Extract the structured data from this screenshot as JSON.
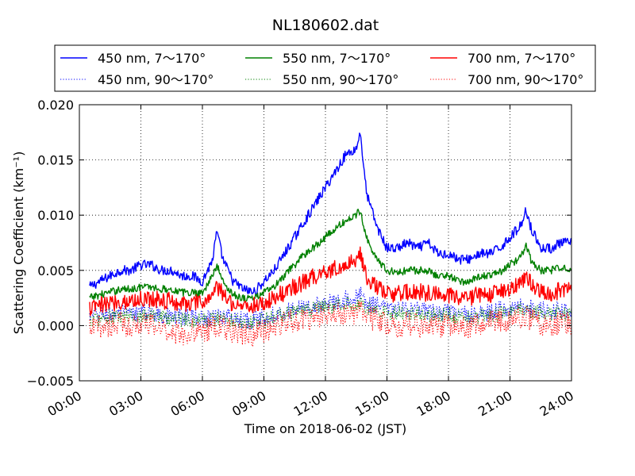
{
  "chart_data": {
    "type": "line",
    "title": "NL180602.dat",
    "xlabel": "Time on 2018-06-02 (JST)",
    "ylabel": "Scattering Coefficient (km⁻¹)",
    "xlim": [
      "00:00",
      "24:00"
    ],
    "ylim": [
      -0.005,
      0.02
    ],
    "grid": true,
    "legend_position": "top",
    "x_ticks": [
      "00:00",
      "03:00",
      "06:00",
      "09:00",
      "12:00",
      "15:00",
      "18:00",
      "21:00",
      "24:00"
    ],
    "y_ticks": [
      "−0.005",
      "0.000",
      "0.005",
      "0.010",
      "0.015",
      "0.020"
    ],
    "x_hours": [
      0.5,
      1,
      1.5,
      2,
      2.5,
      3,
      3.5,
      4,
      4.5,
      5,
      5.5,
      6,
      6.5,
      6.7,
      7,
      7.5,
      8,
      8.5,
      9,
      9.5,
      10,
      10.5,
      11,
      11.5,
      12,
      12.5,
      13,
      13.5,
      13.7,
      14,
      14.5,
      15,
      15.5,
      16,
      16.5,
      17,
      17.5,
      18,
      18.5,
      19,
      19.5,
      20,
      20.5,
      21,
      21.5,
      21.8,
      22,
      22.5,
      23,
      23.5,
      24
    ],
    "series": [
      {
        "name": "450 nm, 7～170°",
        "color": "#0000ff",
        "style": "solid",
        "values": [
          0.0035,
          0.004,
          0.0045,
          0.005,
          0.005,
          0.0055,
          0.0055,
          0.005,
          0.005,
          0.0045,
          0.0045,
          0.004,
          0.006,
          0.0085,
          0.006,
          0.004,
          0.0033,
          0.003,
          0.004,
          0.005,
          0.0065,
          0.008,
          0.0095,
          0.011,
          0.0125,
          0.014,
          0.0155,
          0.016,
          0.0175,
          0.012,
          0.009,
          0.007,
          0.007,
          0.0075,
          0.007,
          0.0075,
          0.0065,
          0.0065,
          0.006,
          0.006,
          0.0065,
          0.0065,
          0.007,
          0.008,
          0.009,
          0.0105,
          0.009,
          0.007,
          0.007,
          0.0075,
          0.0075
        ]
      },
      {
        "name": "450 nm, 90～170°",
        "color": "#0000ff",
        "style": "dotted",
        "values": [
          0.0008,
          0.001,
          0.001,
          0.0012,
          0.001,
          0.0012,
          0.0012,
          0.001,
          0.0008,
          0.0008,
          0.0008,
          0.0006,
          0.0008,
          0.001,
          0.0008,
          0.0008,
          0.0005,
          0.0005,
          0.0008,
          0.001,
          0.0012,
          0.0015,
          0.0016,
          0.0018,
          0.002,
          0.0022,
          0.0024,
          0.0025,
          0.0028,
          0.002,
          0.0018,
          0.0015,
          0.0014,
          0.0015,
          0.0014,
          0.0012,
          0.0012,
          0.0012,
          0.001,
          0.001,
          0.001,
          0.0012,
          0.0014,
          0.0016,
          0.0018,
          0.0018,
          0.0016,
          0.0014,
          0.0014,
          0.0014,
          0.0014
        ]
      },
      {
        "name": "550 nm, 7～170°",
        "color": "#008000",
        "style": "solid",
        "values": [
          0.0025,
          0.0028,
          0.003,
          0.0033,
          0.0033,
          0.0035,
          0.0035,
          0.0033,
          0.0033,
          0.003,
          0.003,
          0.003,
          0.0045,
          0.0055,
          0.004,
          0.0028,
          0.0025,
          0.0025,
          0.003,
          0.0035,
          0.0045,
          0.0055,
          0.0065,
          0.0072,
          0.008,
          0.0088,
          0.0095,
          0.01,
          0.0105,
          0.008,
          0.006,
          0.005,
          0.0048,
          0.005,
          0.005,
          0.005,
          0.0045,
          0.0045,
          0.004,
          0.004,
          0.0045,
          0.0045,
          0.0048,
          0.0055,
          0.0062,
          0.0072,
          0.006,
          0.005,
          0.005,
          0.0052,
          0.0052
        ]
      },
      {
        "name": "550 nm, 90～170°",
        "color": "#008000",
        "style": "dotted",
        "values": [
          0.0005,
          0.0006,
          0.0008,
          0.0008,
          0.0008,
          0.001,
          0.001,
          0.0008,
          0.0006,
          0.0006,
          0.0005,
          0.0005,
          0.0006,
          0.0008,
          0.0006,
          0.0005,
          0.0003,
          0.0003,
          0.0005,
          0.0008,
          0.001,
          0.0012,
          0.0013,
          0.0015,
          0.0016,
          0.0018,
          0.002,
          0.002,
          0.0022,
          0.0016,
          0.0014,
          0.0012,
          0.0011,
          0.0012,
          0.0011,
          0.001,
          0.001,
          0.001,
          0.0008,
          0.0008,
          0.0008,
          0.001,
          0.0011,
          0.0012,
          0.0014,
          0.0014,
          0.0012,
          0.0011,
          0.0011,
          0.0011,
          0.0011
        ]
      },
      {
        "name": "700 nm, 7～170°",
        "color": "#ff0000",
        "style": "solid",
        "values": [
          0.0015,
          0.0018,
          0.002,
          0.0022,
          0.0022,
          0.0024,
          0.0025,
          0.0023,
          0.0022,
          0.002,
          0.002,
          0.002,
          0.0028,
          0.0035,
          0.0028,
          0.002,
          0.0018,
          0.0018,
          0.002,
          0.0025,
          0.003,
          0.0035,
          0.004,
          0.0045,
          0.005,
          0.0052,
          0.0055,
          0.006,
          0.0065,
          0.0045,
          0.0035,
          0.0028,
          0.0028,
          0.003,
          0.003,
          0.003,
          0.0028,
          0.0028,
          0.0025,
          0.0025,
          0.0028,
          0.0028,
          0.003,
          0.0035,
          0.004,
          0.0045,
          0.0038,
          0.003,
          0.003,
          0.0032,
          0.0032
        ]
      },
      {
        "name": "700 nm, 90～170°",
        "color": "#ff0000",
        "style": "dotted",
        "values": [
          -0.0005,
          0.0,
          0.0,
          0.0002,
          0.0,
          0.0002,
          0.0,
          -0.0002,
          -0.0005,
          -0.0008,
          -0.0005,
          -0.0005,
          -0.0002,
          0.0,
          -0.0002,
          -0.0005,
          -0.0008,
          -0.0008,
          -0.0005,
          0.0,
          0.0002,
          0.0005,
          0.0005,
          0.0008,
          0.0008,
          0.001,
          0.0012,
          0.0012,
          0.0015,
          0.0008,
          0.0005,
          0.0002,
          0.0,
          0.0002,
          0.0,
          -0.0002,
          0.0,
          0.0,
          -0.0002,
          -0.0002,
          0.0,
          0.0002,
          0.0005,
          0.0005,
          0.0008,
          0.0008,
          0.0005,
          0.0002,
          0.0002,
          0.0002,
          0.0002
        ]
      }
    ]
  }
}
